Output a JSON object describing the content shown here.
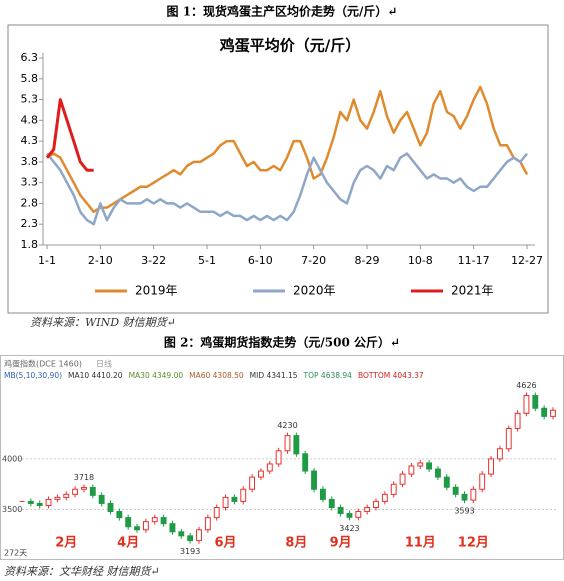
{
  "figure1": {
    "caption": "图 1：现货鸡蛋主产区均价走势（元/斤）↵",
    "source": "资料来源：WIND 财信期货↵"
  },
  "figure2": {
    "caption": "图 2：鸡蛋期货指数走势（元/500 公斤）↵",
    "source": "资料来源：文华财经 财信期货↵"
  },
  "chart_data": [
    {
      "type": "line",
      "title": "鸡蛋平均价（元/斤）",
      "categories": [
        "1-1",
        null,
        null,
        null,
        null,
        null,
        null,
        null,
        "2-10",
        null,
        null,
        null,
        null,
        null,
        null,
        null,
        "3-22",
        null,
        null,
        null,
        null,
        null,
        null,
        null,
        "5-1",
        null,
        null,
        null,
        null,
        null,
        null,
        null,
        "6-10",
        null,
        null,
        null,
        null,
        null,
        null,
        null,
        "7-20",
        null,
        null,
        null,
        null,
        null,
        null,
        null,
        "8-29",
        null,
        null,
        null,
        null,
        null,
        null,
        null,
        "10-8",
        null,
        null,
        null,
        null,
        null,
        null,
        null,
        "11-17",
        null,
        null,
        null,
        null,
        null,
        null,
        null,
        "12-27"
      ],
      "series": [
        {
          "name": "2019年",
          "color": "#e08a2e",
          "values": [
            3.9,
            4.0,
            3.9,
            3.6,
            3.3,
            3.0,
            2.8,
            2.6,
            2.7,
            2.7,
            2.8,
            2.9,
            3.0,
            3.1,
            3.2,
            3.2,
            3.3,
            3.4,
            3.5,
            3.6,
            3.5,
            3.7,
            3.8,
            3.8,
            3.9,
            4.0,
            4.2,
            4.3,
            4.3,
            4.0,
            3.7,
            3.8,
            3.6,
            3.6,
            3.7,
            3.6,
            3.9,
            4.3,
            4.3,
            3.9,
            3.4,
            3.5,
            3.9,
            4.4,
            5.0,
            4.8,
            5.3,
            4.8,
            4.6,
            5.0,
            5.5,
            4.9,
            4.5,
            4.8,
            5.0,
            4.6,
            4.2,
            4.5,
            5.2,
            5.5,
            5.0,
            4.9,
            4.6,
            4.9,
            5.3,
            5.6,
            5.2,
            4.6,
            4.2,
            4.2,
            3.9,
            3.8,
            3.5
          ]
        },
        {
          "name": "2020年",
          "color": "#8ea6c8",
          "values": [
            4.0,
            3.8,
            3.6,
            3.3,
            3.0,
            2.6,
            2.4,
            2.3,
            2.8,
            2.4,
            2.7,
            2.9,
            2.8,
            2.8,
            2.8,
            2.9,
            2.8,
            2.9,
            2.8,
            2.8,
            2.7,
            2.8,
            2.7,
            2.6,
            2.6,
            2.6,
            2.5,
            2.6,
            2.5,
            2.5,
            2.4,
            2.5,
            2.4,
            2.5,
            2.4,
            2.5,
            2.4,
            2.6,
            3.0,
            3.5,
            3.9,
            3.6,
            3.3,
            3.1,
            2.9,
            2.8,
            3.3,
            3.6,
            3.7,
            3.6,
            3.4,
            3.7,
            3.6,
            3.9,
            4.0,
            3.8,
            3.6,
            3.4,
            3.5,
            3.4,
            3.4,
            3.3,
            3.4,
            3.2,
            3.1,
            3.2,
            3.2,
            3.4,
            3.6,
            3.8,
            3.9,
            3.8,
            4.0
          ]
        },
        {
          "name": "2021年",
          "color": "#e01b1b",
          "values": [
            3.9,
            4.1,
            5.3,
            4.8,
            4.3,
            3.8,
            3.6,
            3.6,
            null,
            null,
            null,
            null,
            null,
            null,
            null,
            null,
            null,
            null,
            null,
            null,
            null,
            null,
            null,
            null,
            null,
            null,
            null,
            null,
            null,
            null,
            null,
            null,
            null,
            null,
            null,
            null,
            null,
            null,
            null,
            null,
            null,
            null,
            null,
            null,
            null,
            null,
            null,
            null,
            null,
            null,
            null,
            null,
            null,
            null,
            null,
            null,
            null,
            null,
            null,
            null,
            null,
            null,
            null,
            null,
            null,
            null,
            null,
            null,
            null,
            null,
            null,
            null,
            null
          ]
        }
      ],
      "ylim": [
        1.8,
        6.3
      ],
      "yticks": [
        1.8,
        2.3,
        2.8,
        3.3,
        3.8,
        4.3,
        4.8,
        5.3,
        5.8,
        6.3
      ],
      "legend": "bottom"
    },
    {
      "type": "candlestick",
      "title": "鸡蛋指数(DCE 1460)",
      "subtitle": "日线",
      "indicators": [
        {
          "label": "MB(5,10,30,90)",
          "color": "#2b5fb8"
        },
        {
          "label": "MA10 4410.20",
          "color": "#333333"
        },
        {
          "label": "MA30 4349.00",
          "color": "#5a8f2a"
        },
        {
          "label": "MA60 4308.50",
          "color": "#b05a2a"
        },
        {
          "label": "MID 4341.15",
          "color": "#333333"
        },
        {
          "label": "TOP 4638.94",
          "color": "#2a8f5a"
        },
        {
          "label": "BOTTOM 4043.37",
          "color": "#d02020"
        }
      ],
      "categories": [
        null,
        null,
        null,
        null,
        null,
        "2月",
        null,
        null,
        null,
        null,
        null,
        null,
        "4月",
        null,
        null,
        null,
        null,
        null,
        null,
        null,
        null,
        null,
        null,
        "6月",
        null,
        null,
        null,
        null,
        null,
        null,
        null,
        "8月",
        null,
        null,
        null,
        null,
        "9月",
        null,
        null,
        null,
        null,
        null,
        null,
        null,
        null,
        "11月",
        null,
        null,
        null,
        null,
        null,
        "12月",
        null,
        null,
        null,
        null,
        null,
        null,
        null,
        null,
        null
      ],
      "values": [
        3580,
        3560,
        3540,
        3600,
        3620,
        3650,
        3700,
        3718,
        3640,
        3560,
        3480,
        3420,
        3330,
        3300,
        3380,
        3420,
        3360,
        3280,
        3240,
        3193,
        3300,
        3420,
        3520,
        3620,
        3580,
        3700,
        3820,
        3880,
        3950,
        4080,
        4230,
        4050,
        3880,
        3700,
        3600,
        3520,
        3460,
        3423,
        3480,
        3520,
        3580,
        3650,
        3750,
        3850,
        3930,
        3960,
        3900,
        3820,
        3720,
        3650,
        3593,
        3700,
        3850,
        4000,
        4100,
        4300,
        4450,
        4626,
        4500,
        4420,
        4480
      ],
      "value_labels": [
        null,
        null,
        null,
        null,
        null,
        null,
        null,
        "3718",
        null,
        null,
        null,
        null,
        null,
        null,
        null,
        null,
        null,
        null,
        null,
        "3193",
        null,
        null,
        null,
        null,
        null,
        null,
        null,
        null,
        null,
        null,
        "4230",
        null,
        null,
        null,
        null,
        null,
        null,
        "3423",
        null,
        null,
        null,
        null,
        null,
        null,
        null,
        null,
        null,
        null,
        null,
        null,
        "3593",
        null,
        null,
        null,
        null,
        null,
        null,
        "4626",
        null,
        null,
        null
      ],
      "ylim": [
        3120,
        4700
      ],
      "yticks": [
        3500,
        4000
      ],
      "note": "272天",
      "up_color": "#e8312f",
      "down_color": "#1f9a45",
      "category_color": "#e0301e"
    }
  ]
}
